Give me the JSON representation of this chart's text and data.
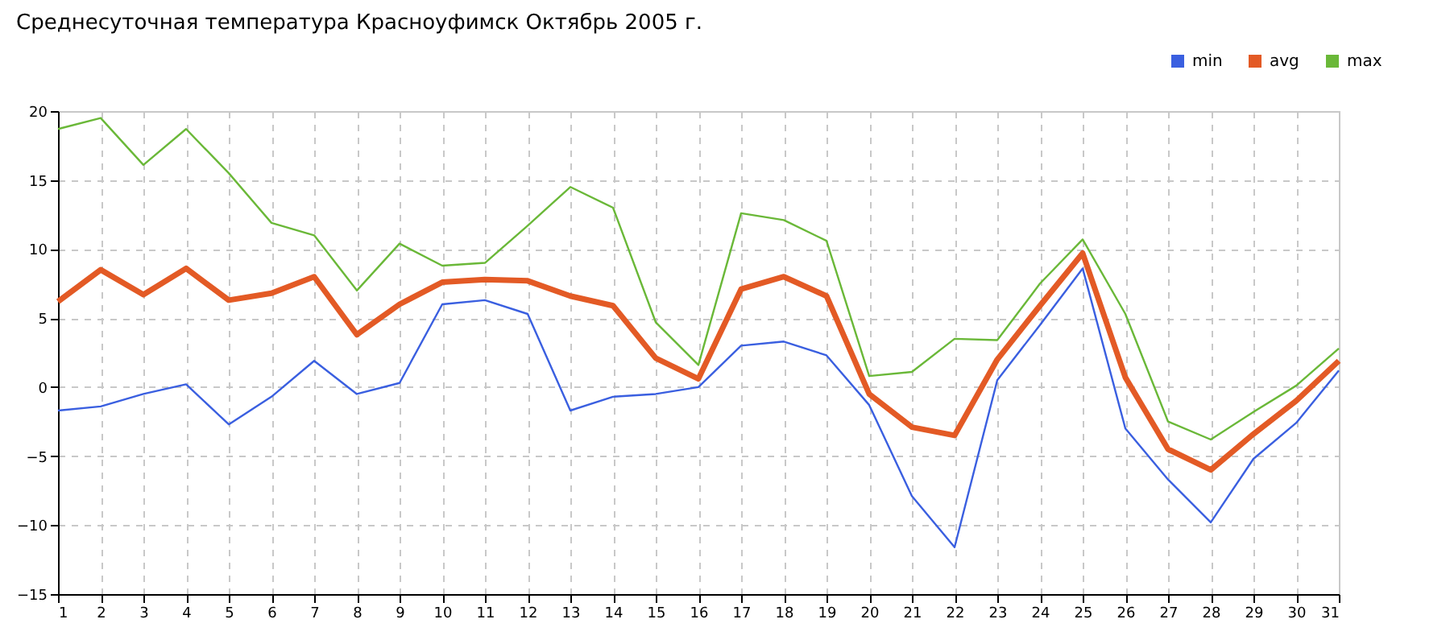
{
  "chart_data": {
    "type": "line",
    "title": "Среднесуточная температура Красноуфимск  Октябрь 2005 г.",
    "x": [
      1,
      2,
      3,
      4,
      5,
      6,
      7,
      8,
      9,
      10,
      11,
      12,
      13,
      14,
      15,
      16,
      17,
      18,
      19,
      20,
      21,
      22,
      23,
      24,
      25,
      26,
      27,
      28,
      29,
      30,
      31
    ],
    "series": [
      {
        "name": "min",
        "color": "#3a5fe0",
        "values": [
          -1.7,
          -1.4,
          -0.5,
          0.2,
          -2.7,
          -0.7,
          1.9,
          -0.5,
          0.3,
          6.0,
          6.3,
          5.3,
          -1.7,
          -0.7,
          -0.5,
          0.0,
          3.0,
          3.3,
          2.3,
          -1.3,
          -7.9,
          -11.6,
          0.5,
          4.5,
          8.6,
          -3.0,
          -6.7,
          -9.8,
          -5.2,
          -2.6,
          1.2
        ]
      },
      {
        "name": "avg",
        "color": "#e35a25",
        "values": [
          6.2,
          8.5,
          6.7,
          8.6,
          6.3,
          6.8,
          8.0,
          3.8,
          6.0,
          7.6,
          7.8,
          7.7,
          6.6,
          5.9,
          2.1,
          0.6,
          7.1,
          8.0,
          6.6,
          -0.5,
          -2.9,
          -3.5,
          2.0,
          5.9,
          9.7,
          0.7,
          -4.5,
          -6.0,
          -3.4,
          -1.0,
          1.9
        ]
      },
      {
        "name": "max",
        "color": "#6ab838",
        "values": [
          18.7,
          19.5,
          16.1,
          18.7,
          15.5,
          11.9,
          11.0,
          7.0,
          10.4,
          8.8,
          9.0,
          11.7,
          14.5,
          13.0,
          4.7,
          1.6,
          12.6,
          12.1,
          10.6,
          0.8,
          1.1,
          3.5,
          3.4,
          7.5,
          10.7,
          5.3,
          -2.5,
          -3.8,
          -1.8,
          0.1,
          2.8
        ]
      }
    ],
    "xlim": [
      1,
      31
    ],
    "xticks": [
      1,
      2,
      3,
      4,
      5,
      6,
      7,
      8,
      9,
      10,
      11,
      12,
      13,
      14,
      15,
      16,
      17,
      18,
      19,
      20,
      21,
      22,
      23,
      24,
      25,
      26,
      27,
      28,
      29,
      30,
      31
    ],
    "ylim": [
      -15,
      20
    ],
    "yticks": [
      -15,
      -10,
      -5,
      0,
      5,
      10,
      15,
      20
    ],
    "grid": true,
    "legend": "top right",
    "marker": "none",
    "line_style": "solid"
  }
}
